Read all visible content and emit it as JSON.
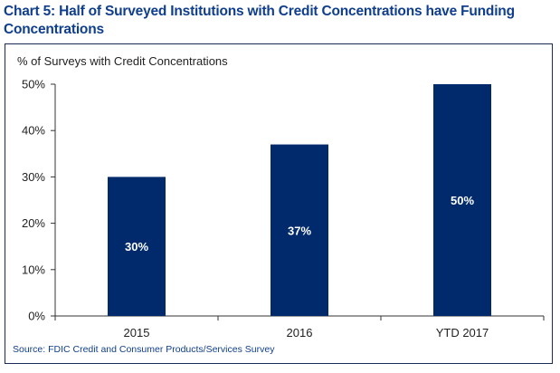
{
  "chart_data": {
    "type": "bar",
    "title": "Chart 5: Half of Surveyed Institutions with Credit Concentrations have Funding Concentrations",
    "ylabel": "% of Surveys with Credit Concentrations",
    "xlabel": "",
    "categories": [
      "2015",
      "2016",
      "YTD 2017"
    ],
    "values": [
      30,
      37,
      50
    ],
    "data_labels": [
      "30%",
      "37%",
      "50%"
    ],
    "yticks": [
      "0%",
      "10%",
      "20%",
      "30%",
      "40%",
      "50%"
    ],
    "ylim": [
      0,
      50
    ],
    "grid": false,
    "bar_color": "#002a6c",
    "label_color": "#ffffff",
    "source": "Source: FDIC Credit and Consumer Products/Services Survey"
  }
}
